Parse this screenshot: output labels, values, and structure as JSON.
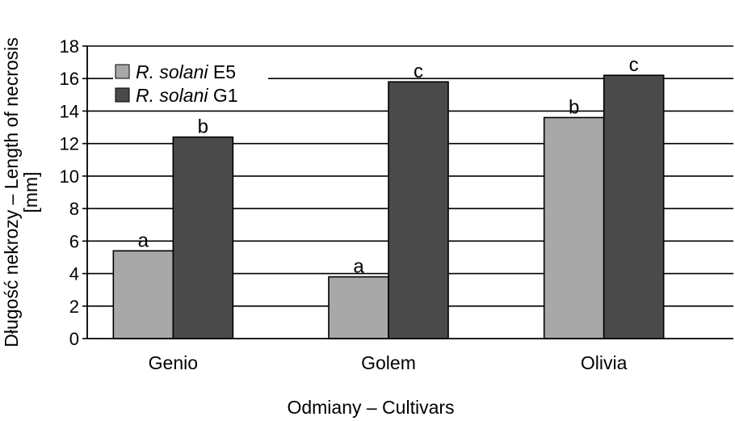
{
  "chart_data": {
    "type": "bar",
    "categories": [
      "Genio",
      "Golem",
      "Olivia"
    ],
    "series": [
      {
        "name_italic": "R. solani",
        "name_suffix": "E5",
        "color": "#a8a8a8",
        "values": [
          5.4,
          3.8,
          13.6
        ],
        "labels": [
          "a",
          "a",
          "b"
        ]
      },
      {
        "name_italic": "R. solani",
        "name_suffix": "G1",
        "color": "#4a4a4a",
        "values": [
          12.4,
          15.8,
          16.2
        ],
        "labels": [
          "b",
          "c",
          "c"
        ]
      }
    ],
    "ylim": [
      0,
      18
    ],
    "yticks": [
      0,
      2,
      4,
      6,
      8,
      10,
      12,
      14,
      16,
      18
    ],
    "xlabel": "Odmiany – Cultivars",
    "ylabel_line1": "Długość nekrozy – Length of necrosis",
    "ylabel_line2": "[mm]",
    "grid": true,
    "legend_position": "top-left"
  }
}
